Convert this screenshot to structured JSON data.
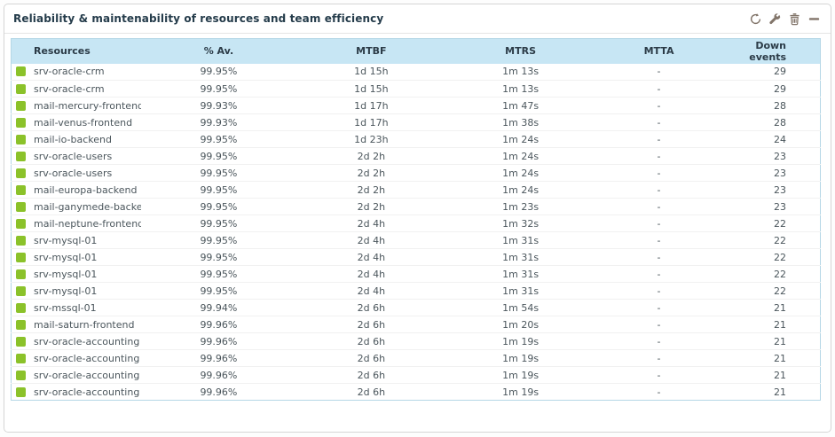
{
  "widget": {
    "title": "Reliability & maintenability of resources and team efficiency",
    "toolbar": {
      "refresh": "refresh",
      "settings": "configure",
      "delete": "delete",
      "collapse": "minimize"
    }
  },
  "colors": {
    "status_ok": "#8bc22a",
    "header_bg": "#c7e6f4",
    "header_text": "#2b3b47",
    "title_text": "#253c4b",
    "icon": "#82756a",
    "table_border": "#b5d7e6"
  },
  "table": {
    "columns": [
      "Resources",
      "% Av.",
      "MTBF",
      "MTRS",
      "MTTA",
      "Down events"
    ],
    "rows": [
      {
        "name": "srv-oracle-crm",
        "availability": "99.95%",
        "mtbf": "1d 15h",
        "mtrs": "1m 13s",
        "mtta": "-",
        "down_events": "29"
      },
      {
        "name": "srv-oracle-crm",
        "availability": "99.95%",
        "mtbf": "1d 15h",
        "mtrs": "1m 13s",
        "mtta": "-",
        "down_events": "29"
      },
      {
        "name": "mail-mercury-frontend",
        "availability": "99.93%",
        "mtbf": "1d 17h",
        "mtrs": "1m 47s",
        "mtta": "-",
        "down_events": "28"
      },
      {
        "name": "mail-venus-frontend",
        "availability": "99.93%",
        "mtbf": "1d 17h",
        "mtrs": "1m 38s",
        "mtta": "-",
        "down_events": "28"
      },
      {
        "name": "mail-io-backend",
        "availability": "99.95%",
        "mtbf": "1d 23h",
        "mtrs": "1m 24s",
        "mtta": "-",
        "down_events": "24"
      },
      {
        "name": "srv-oracle-users",
        "availability": "99.95%",
        "mtbf": "2d 2h",
        "mtrs": "1m 24s",
        "mtta": "-",
        "down_events": "23"
      },
      {
        "name": "srv-oracle-users",
        "availability": "99.95%",
        "mtbf": "2d 2h",
        "mtrs": "1m 24s",
        "mtta": "-",
        "down_events": "23"
      },
      {
        "name": "mail-europa-backend",
        "availability": "99.95%",
        "mtbf": "2d 2h",
        "mtrs": "1m 24s",
        "mtta": "-",
        "down_events": "23"
      },
      {
        "name": "mail-ganymede-backend",
        "availability": "99.95%",
        "mtbf": "2d 2h",
        "mtrs": "1m 23s",
        "mtta": "-",
        "down_events": "23"
      },
      {
        "name": "mail-neptune-frontend",
        "availability": "99.95%",
        "mtbf": "2d 4h",
        "mtrs": "1m 32s",
        "mtta": "-",
        "down_events": "22"
      },
      {
        "name": "srv-mysql-01",
        "availability": "99.95%",
        "mtbf": "2d 4h",
        "mtrs": "1m 31s",
        "mtta": "-",
        "down_events": "22"
      },
      {
        "name": "srv-mysql-01",
        "availability": "99.95%",
        "mtbf": "2d 4h",
        "mtrs": "1m 31s",
        "mtta": "-",
        "down_events": "22"
      },
      {
        "name": "srv-mysql-01",
        "availability": "99.95%",
        "mtbf": "2d 4h",
        "mtrs": "1m 31s",
        "mtta": "-",
        "down_events": "22"
      },
      {
        "name": "srv-mysql-01",
        "availability": "99.95%",
        "mtbf": "2d 4h",
        "mtrs": "1m 31s",
        "mtta": "-",
        "down_events": "22"
      },
      {
        "name": "srv-mssql-01",
        "availability": "99.94%",
        "mtbf": "2d 6h",
        "mtrs": "1m 54s",
        "mtta": "-",
        "down_events": "21"
      },
      {
        "name": "mail-saturn-frontend",
        "availability": "99.96%",
        "mtbf": "2d 6h",
        "mtrs": "1m 20s",
        "mtta": "-",
        "down_events": "21"
      },
      {
        "name": "srv-oracle-accounting",
        "availability": "99.96%",
        "mtbf": "2d 6h",
        "mtrs": "1m 19s",
        "mtta": "-",
        "down_events": "21"
      },
      {
        "name": "srv-oracle-accounting",
        "availability": "99.96%",
        "mtbf": "2d 6h",
        "mtrs": "1m 19s",
        "mtta": "-",
        "down_events": "21"
      },
      {
        "name": "srv-oracle-accounting",
        "availability": "99.96%",
        "mtbf": "2d 6h",
        "mtrs": "1m 19s",
        "mtta": "-",
        "down_events": "21"
      },
      {
        "name": "srv-oracle-accounting",
        "availability": "99.96%",
        "mtbf": "2d 6h",
        "mtrs": "1m 19s",
        "mtta": "-",
        "down_events": "21"
      }
    ]
  }
}
